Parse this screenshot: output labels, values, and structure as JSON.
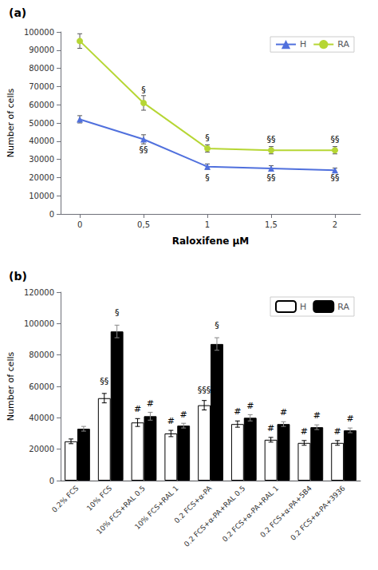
{
  "chart_data": [
    {
      "type": "line",
      "title": "(a)",
      "xlabel": "Raloxifene μM",
      "ylabel": "Number of cells",
      "xlim": [
        -0.15,
        2.2
      ],
      "ylim": [
        0,
        100000
      ],
      "xticks": [
        0,
        {
          "value": 0.5,
          "label": "0,5"
        },
        1,
        {
          "value": 1.5,
          "label": "1,5"
        },
        2
      ],
      "yticks": [
        0,
        10000,
        20000,
        30000,
        40000,
        50000,
        60000,
        70000,
        80000,
        90000,
        100000
      ],
      "grid": false,
      "legend": "upper right",
      "series": [
        {
          "name": "H",
          "marker": "triangle",
          "x": [
            0,
            0.5,
            1,
            1.5,
            2
          ],
          "values": [
            52000,
            41000,
            26000,
            25000,
            24000
          ],
          "errors": [
            2000,
            2500,
            1500,
            1500,
            1200
          ]
        },
        {
          "name": "RA",
          "marker": "circle",
          "x": [
            0,
            0.5,
            1,
            1.5,
            2
          ],
          "values": [
            95000,
            61000,
            36000,
            35000,
            35000
          ],
          "errors": [
            4000,
            4000,
            2000,
            2000,
            2000
          ]
        }
      ],
      "annotations": [
        {
          "x": 0.5,
          "y": 66000,
          "text": "§"
        },
        {
          "x": 0.5,
          "y": 33000,
          "text": "§§"
        },
        {
          "x": 1.0,
          "y": 39500,
          "text": "§"
        },
        {
          "x": 1.0,
          "y": 17500,
          "text": "§"
        },
        {
          "x": 1.5,
          "y": 38500,
          "text": "§§"
        },
        {
          "x": 1.5,
          "y": 17500,
          "text": "§§"
        },
        {
          "x": 2.0,
          "y": 38500,
          "text": "§§"
        },
        {
          "x": 2.0,
          "y": 17500,
          "text": "§§"
        }
      ]
    },
    {
      "type": "bar",
      "title": "(b)",
      "ylabel": "Number of cells",
      "ylim": [
        0,
        120000
      ],
      "yticks": [
        0,
        20000,
        40000,
        60000,
        80000,
        100000,
        120000
      ],
      "categories": [
        "0.2% FCS",
        "10% FCS",
        "10% FCS+RAL 0.5",
        "10% FCS+RAL 1",
        "0.2 FCS+α-PA",
        "0.2 FCS+α-PA+RAL 0.5",
        "0.2 FCS+α-PA+RAL 1",
        "0.2 FCS+α-PA+5B4",
        "0.2 FCS+α-PA+3936"
      ],
      "grid": false,
      "legend": "upper right",
      "series": [
        {
          "name": "H",
          "color": "white",
          "values": [
            25000,
            52500,
            37000,
            30000,
            48000,
            36000,
            26000,
            24000,
            24000
          ],
          "errors": [
            1500,
            3000,
            2500,
            2000,
            3000,
            2000,
            1500,
            1500,
            1500
          ]
        },
        {
          "name": "RA",
          "color": "black",
          "values": [
            33000,
            95000,
            41000,
            35000,
            87000,
            40000,
            36000,
            34000,
            32000
          ],
          "errors": [
            1500,
            4000,
            2500,
            1500,
            4000,
            2000,
            1500,
            1500,
            1500
          ]
        }
      ],
      "annotations": [
        {
          "category": "10% FCS",
          "series": "H",
          "y": 60500,
          "text": "§§"
        },
        {
          "category": "10% FCS",
          "series": "RA",
          "y": 104000,
          "text": "§"
        },
        {
          "category": "0.2 FCS+α-PA",
          "series": "H",
          "y": 55000,
          "text": "§§§"
        },
        {
          "category": "0.2 FCS+α-PA",
          "series": "RA",
          "y": 96000,
          "text": "§"
        },
        {
          "category": "10% FCS+RAL 0.5",
          "series": "H",
          "y": 42500,
          "text": "#"
        },
        {
          "category": "10% FCS+RAL 0.5",
          "series": "RA",
          "y": 46500,
          "text": "#"
        },
        {
          "category": "10% FCS+RAL 1",
          "series": "H",
          "y": 35000,
          "text": "#"
        },
        {
          "category": "10% FCS+RAL 1",
          "series": "RA",
          "y": 39000,
          "text": "#"
        },
        {
          "category": "0.2 FCS+α-PA+RAL 0.5",
          "series": "H",
          "y": 41000,
          "text": "#"
        },
        {
          "category": "0.2 FCS+α-PA+RAL 0.5",
          "series": "RA",
          "y": 45000,
          "text": "#"
        },
        {
          "category": "0.2 FCS+α-PA+RAL 1",
          "series": "H",
          "y": 30500,
          "text": "#"
        },
        {
          "category": "0.2 FCS+α-PA+RAL 1",
          "series": "RA",
          "y": 40500,
          "text": "#"
        },
        {
          "category": "0.2 FCS+α-PA+5B4",
          "series": "H",
          "y": 28500,
          "text": "#"
        },
        {
          "category": "0.2 FCS+α-PA+5B4",
          "series": "RA",
          "y": 38500,
          "text": "#"
        },
        {
          "category": "0.2 FCS+α-PA+3936",
          "series": "H",
          "y": 28500,
          "text": "#"
        },
        {
          "category": "0.2 FCS+α-PA+3936",
          "series": "RA",
          "y": 36500,
          "text": "#"
        }
      ]
    }
  ]
}
